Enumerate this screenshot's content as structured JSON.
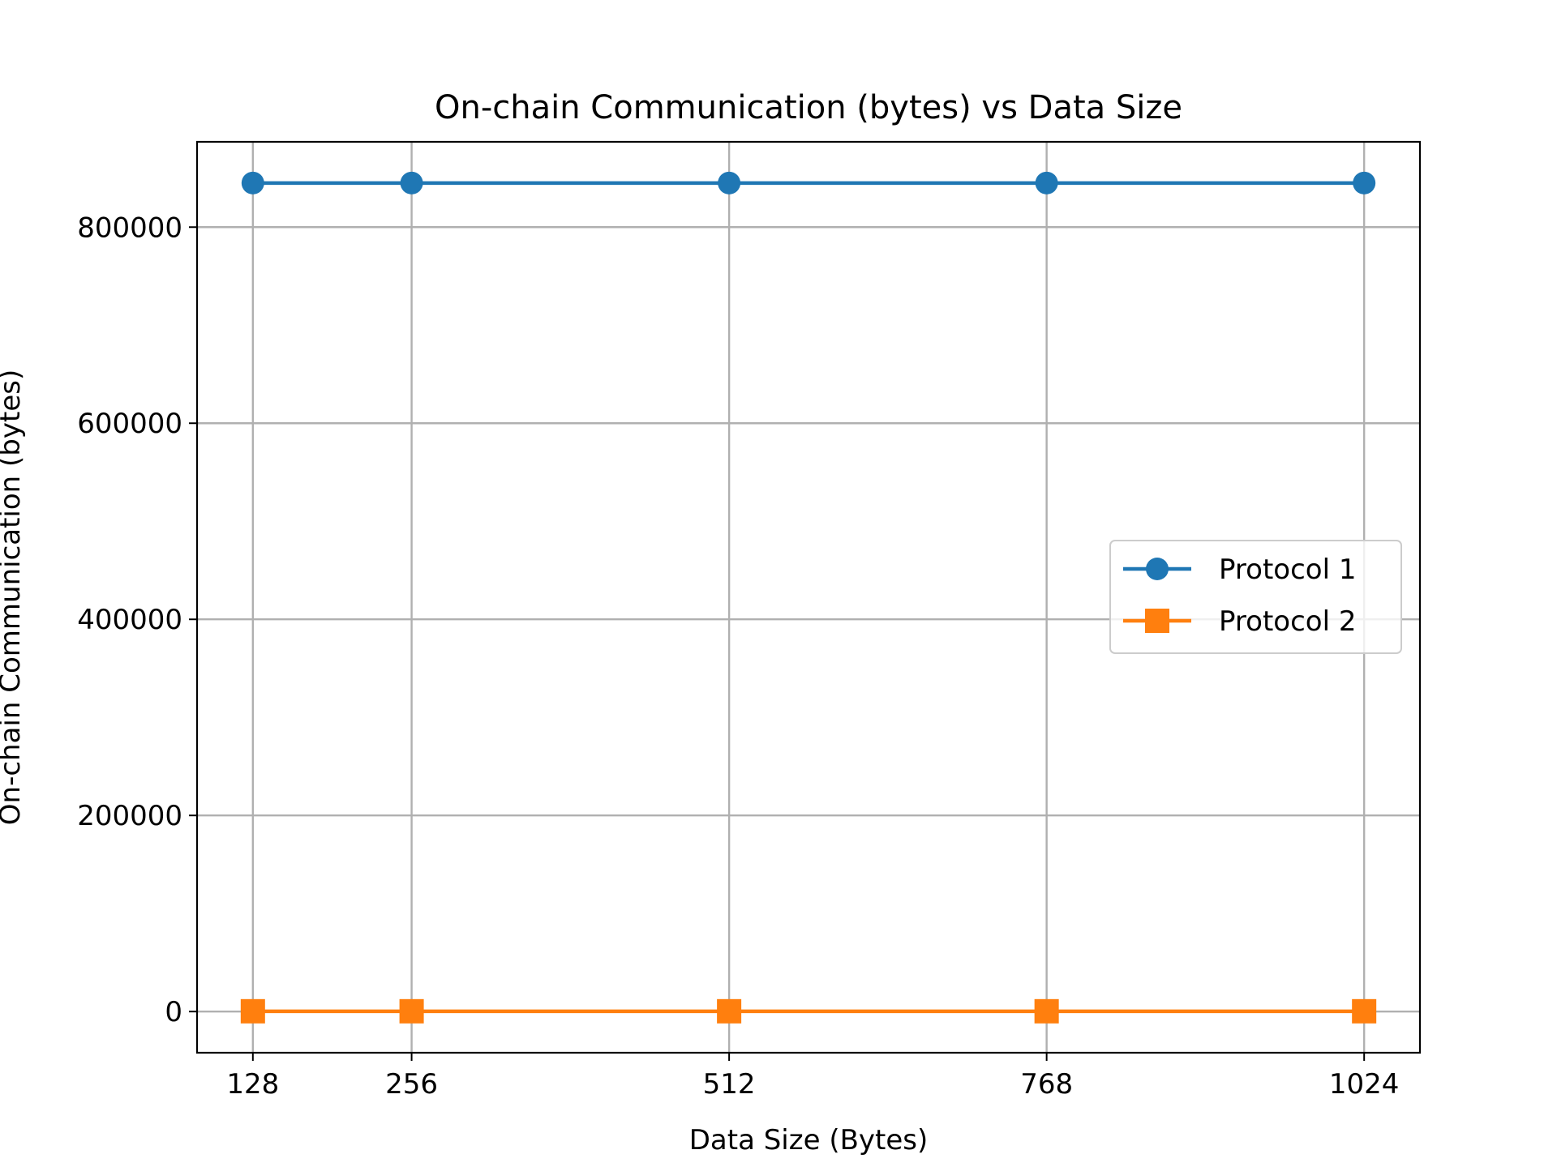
{
  "chart_data": {
    "type": "line",
    "title": "On-chain Communication (bytes) vs Data Size",
    "xlabel": "Data Size (Bytes)",
    "ylabel": "On-chain Communication (bytes)",
    "x": [
      128,
      256,
      512,
      768,
      1024
    ],
    "xticks": [
      "128",
      "256",
      "512",
      "768",
      "1024"
    ],
    "yticks": [
      0,
      200000,
      400000,
      600000,
      800000
    ],
    "ytick_labels": [
      "0",
      "200000",
      "400000",
      "600000",
      "800000"
    ],
    "xlim": [
      83,
      1069
    ],
    "ylim": [
      -42000,
      887000
    ],
    "grid": true,
    "legend_position": "center-right",
    "series": [
      {
        "name": "Protocol 1",
        "values": [
          845000,
          845000,
          845000,
          845000,
          845000
        ],
        "color": "#1f77b4",
        "marker": "circle"
      },
      {
        "name": "Protocol 2",
        "values": [
          300,
          300,
          300,
          300,
          300
        ],
        "color": "#ff7f0e",
        "marker": "square"
      }
    ]
  }
}
